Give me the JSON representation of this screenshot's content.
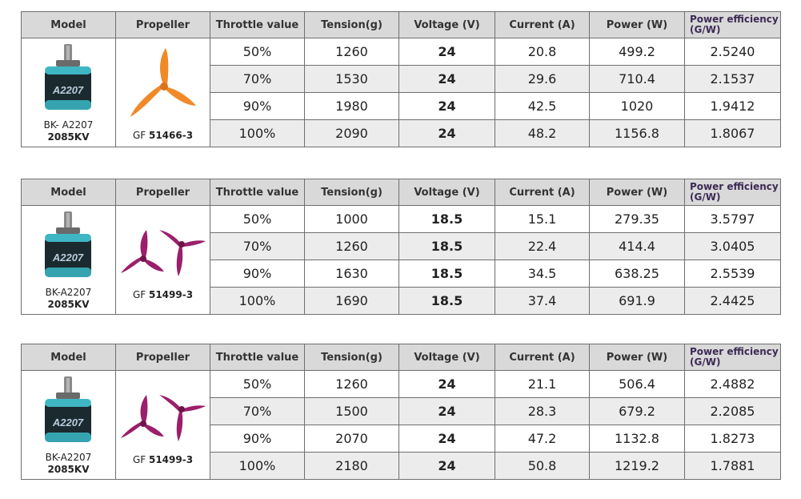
{
  "headers": {
    "model": "Model",
    "propeller": "Propeller",
    "throttle": "Throttle value",
    "tension": "Tension(g)",
    "voltage": "Voltage (V)",
    "current": "Current (A)",
    "power": "Power (W)",
    "efficiency_line1": "Power efficiency",
    "efficiency_line2": "(G/W)"
  },
  "tables": [
    {
      "model_name": "BK- A2207",
      "model_kv": "2085KV",
      "propeller_prefix": "GF",
      "propeller_code": "51466-3",
      "propeller_color": "#f08a28",
      "rows": [
        {
          "throttle": "50%",
          "tension": "1260",
          "voltage": "24",
          "current": "20.8",
          "power": "499.2",
          "efficiency": "2.5240"
        },
        {
          "throttle": "70%",
          "tension": "1530",
          "voltage": "24",
          "current": "29.6",
          "power": "710.4",
          "efficiency": "2.1537"
        },
        {
          "throttle": "90%",
          "tension": "1980",
          "voltage": "24",
          "current": "42.5",
          "power": "1020",
          "efficiency": "1.9412"
        },
        {
          "throttle": "100%",
          "tension": "2090",
          "voltage": "24",
          "current": "48.2",
          "power": "1156.8",
          "efficiency": "1.8067"
        }
      ]
    },
    {
      "model_name": "BK-A2207",
      "model_kv": "2085KV",
      "propeller_prefix": "GF",
      "propeller_code": "51499-3",
      "propeller_color": "#9b1f6a",
      "rows": [
        {
          "throttle": "50%",
          "tension": "1000",
          "voltage": "18.5",
          "current": "15.1",
          "power": "279.35",
          "efficiency": "3.5797"
        },
        {
          "throttle": "70%",
          "tension": "1260",
          "voltage": "18.5",
          "current": "22.4",
          "power": "414.4",
          "efficiency": "3.0405"
        },
        {
          "throttle": "90%",
          "tension": "1630",
          "voltage": "18.5",
          "current": "34.5",
          "power": "638.25",
          "efficiency": "2.5539"
        },
        {
          "throttle": "100%",
          "tension": "1690",
          "voltage": "18.5",
          "current": "37.4",
          "power": "691.9",
          "efficiency": "2.4425"
        }
      ]
    },
    {
      "model_name": "BK-A2207",
      "model_kv": "2085KV",
      "propeller_prefix": "GF",
      "propeller_code": "51499-3",
      "propeller_color": "#9b1f6a",
      "rows": [
        {
          "throttle": "50%",
          "tension": "1260",
          "voltage": "24",
          "current": "21.1",
          "power": "506.4",
          "efficiency": "2.4882"
        },
        {
          "throttle": "70%",
          "tension": "1500",
          "voltage": "24",
          "current": "28.3",
          "power": "679.2",
          "efficiency": "2.2085"
        },
        {
          "throttle": "90%",
          "tension": "2070",
          "voltage": "24",
          "current": "47.2",
          "power": "1132.8",
          "efficiency": "1.8273"
        },
        {
          "throttle": "100%",
          "tension": "2180",
          "voltage": "24",
          "current": "50.8",
          "power": "1219.2",
          "efficiency": "1.7881"
        }
      ]
    }
  ]
}
